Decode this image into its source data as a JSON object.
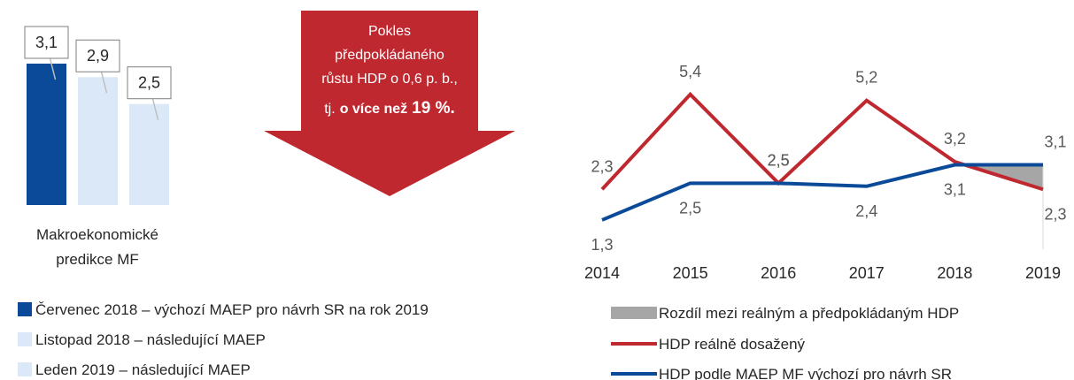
{
  "chart_data": [
    {
      "type": "bar",
      "categories": [
        "Makroekonomické predikce MF"
      ],
      "ylim": [
        1,
        3.1
      ],
      "series": [
        {
          "name": "Červenec 2018 – výchozí MAEP pro návrh SR na rok 2019",
          "color": "#0b4a98",
          "values": [
            3.1
          ],
          "value_labels": [
            "3,1"
          ]
        },
        {
          "name": "Listopad 2018 – následující MAEP",
          "color": "#dae8f8",
          "values": [
            2.9
          ],
          "value_labels": [
            "2,9"
          ]
        },
        {
          "name": "Leden 2019 – následující MAEP",
          "color": "#dae8f8",
          "values": [
            2.5
          ],
          "value_labels": [
            "2,5"
          ]
        }
      ],
      "annotation": {
        "lines": [
          "Pokles",
          "předpokládaného",
          "růstu HDP o 0,6 p. b.,",
          "tj."
        ],
        "bold": "o více než",
        "emphasis": "19 %.",
        "color": "#c0282f"
      }
    },
    {
      "type": "line",
      "x": [
        "2014",
        "2015",
        "2016",
        "2017",
        "2018",
        "2019"
      ],
      "ylim": [
        0,
        6
      ],
      "difference": {
        "name": "Rozdíl mezi reálným a předpokládaným HDP",
        "color": "#a6a6a6"
      },
      "series": [
        {
          "name": "HDP reálně dosažený",
          "color": "#c0282f",
          "values": [
            2.3,
            5.4,
            2.5,
            5.2,
            3.2,
            2.3
          ],
          "value_labels": [
            "2,3",
            "5,4",
            "2,5",
            "5,2",
            "3,2",
            "2,3"
          ]
        },
        {
          "name": "HDP podle MAEP MF výchozí pro návrh SR",
          "color": "#0b4a98",
          "values": [
            1.3,
            2.5,
            2.5,
            2.4,
            3.1,
            3.1
          ],
          "value_labels": [
            "1,3",
            "2,5",
            "2,5",
            "2,4",
            "3,1",
            "3,1"
          ]
        }
      ]
    }
  ]
}
